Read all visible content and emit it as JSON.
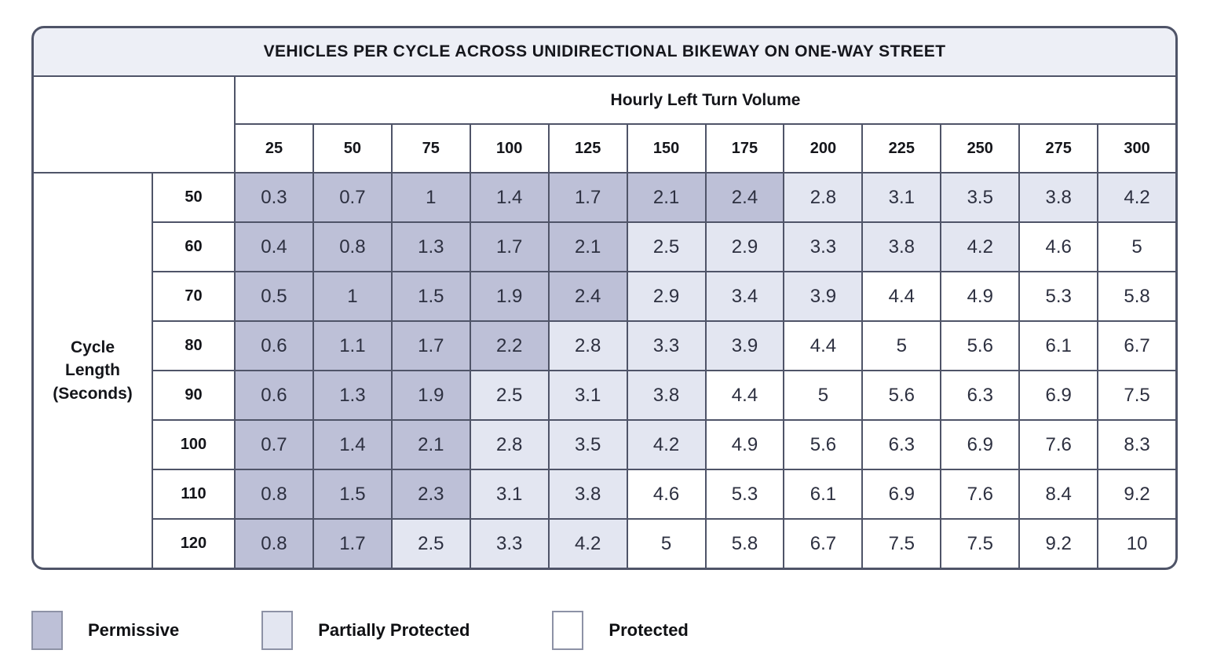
{
  "title": "VEHICLES PER CYCLE ACROSS UNIDIRECTIONAL BIKEWAY ON ONE-WAY STREET",
  "axis": {
    "column_group_label": "Hourly Left Turn Volume",
    "row_group_label": "Cycle Length (Seconds)"
  },
  "chart_data": {
    "type": "heatmap",
    "title": "VEHICLES PER CYCLE ACROSS UNIDIRECTIONAL BIKEWAY ON ONE-WAY STREET",
    "xlabel": "Hourly Left Turn Volume",
    "ylabel": "Cycle Length (Seconds)",
    "x": [
      25,
      50,
      75,
      100,
      125,
      150,
      175,
      200,
      225,
      250,
      275,
      300
    ],
    "y": [
      50,
      60,
      70,
      80,
      90,
      100,
      110,
      120
    ],
    "values": [
      [
        0.3,
        0.7,
        1,
        1.4,
        1.7,
        2.1,
        2.4,
        2.8,
        3.1,
        3.5,
        3.8,
        4.2
      ],
      [
        0.4,
        0.8,
        1.3,
        1.7,
        2.1,
        2.5,
        2.9,
        3.3,
        3.8,
        4.2,
        4.6,
        5
      ],
      [
        0.5,
        1,
        1.5,
        1.9,
        2.4,
        2.9,
        3.4,
        3.9,
        4.4,
        4.9,
        5.3,
        5.8
      ],
      [
        0.6,
        1.1,
        1.7,
        2.2,
        2.8,
        3.3,
        3.9,
        4.4,
        5,
        5.6,
        6.1,
        6.7
      ],
      [
        0.6,
        1.3,
        1.9,
        2.5,
        3.1,
        3.8,
        4.4,
        5,
        5.6,
        6.3,
        6.9,
        7.5
      ],
      [
        0.7,
        1.4,
        2.1,
        2.8,
        3.5,
        4.2,
        4.9,
        5.6,
        6.3,
        6.9,
        7.6,
        8.3
      ],
      [
        0.8,
        1.5,
        2.3,
        3.1,
        3.8,
        4.6,
        5.3,
        6.1,
        6.9,
        7.6,
        8.4,
        9.2
      ],
      [
        0.8,
        1.7,
        2.5,
        3.3,
        4.2,
        5,
        5.8,
        6.7,
        7.5,
        7.5,
        9.2,
        10
      ]
    ],
    "cell_categories": [
      "PPPPPPPAAAAA",
      "PPPPPAAAAAOO",
      "PPPPPAAAOOOO",
      "PPPPAAAOOOOO",
      "PPPAAAOOOOOO",
      "PPPAAAOOOOOO",
      "PPPAAOOOOOOO",
      "PPAAAOOOOOOO"
    ],
    "category_key": {
      "P": "Permissive",
      "A": "Partially Protected",
      "O": "Protected"
    },
    "legend_position": "bottom",
    "grid": true
  },
  "legend": {
    "items": [
      {
        "label": "Permissive",
        "category": "P",
        "color": "#bdc0d7"
      },
      {
        "label": "Partially Protected",
        "category": "A",
        "color": "#e3e6f1"
      },
      {
        "label": "Protected",
        "category": "O",
        "color": "#ffffff"
      }
    ]
  },
  "colors": {
    "permissive": "#bdc0d7",
    "partially_protected": "#e3e6f1",
    "protected": "#ffffff",
    "title_bar_bg": "#edeff6",
    "grid_border": "#4f5468"
  }
}
